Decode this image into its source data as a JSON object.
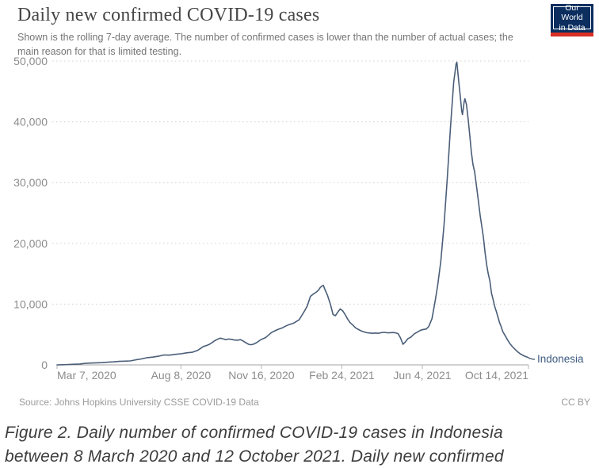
{
  "header": {
    "title": "Daily new confirmed COVID-19 cases",
    "subtitle": "Shown is the rolling 7-day average. The number of confirmed cases is lower than the number of actual cases; the main reason for that is limited testing.",
    "logo": {
      "line1": "Our World",
      "line2": "in Data",
      "bg_color": "#0b2e5f",
      "bar_color": "#d93025"
    }
  },
  "chart_data": {
    "type": "line",
    "title": "Daily new confirmed COVID-19 cases",
    "entity": "Indonesia",
    "xlabel": "",
    "ylabel": "",
    "ylim": [
      0,
      50000
    ],
    "x_domain": [
      0,
      586
    ],
    "x_unit": "days since 2020-03-07",
    "grid": "horizontal-dotted",
    "legend_position": "end-of-line-label",
    "line_color": "#4a5e78",
    "label_color": "#3d5a80",
    "axis_text_color": "#8c8c8c",
    "y_ticks": [
      {
        "value": 0,
        "label": "0"
      },
      {
        "value": 10000,
        "label": "10,000"
      },
      {
        "value": 20000,
        "label": "20,000"
      },
      {
        "value": 30000,
        "label": "30,000"
      },
      {
        "value": 40000,
        "label": "40,000"
      },
      {
        "value": 50000,
        "label": "50,000"
      }
    ],
    "x_ticks": [
      {
        "day": 0,
        "label": "Mar 7, 2020",
        "anchor": "start"
      },
      {
        "day": 154,
        "label": "Aug 8, 2020",
        "anchor": "middle"
      },
      {
        "day": 254,
        "label": "Nov 16, 2020",
        "anchor": "middle"
      },
      {
        "day": 354,
        "label": "Feb 24, 2021",
        "anchor": "middle"
      },
      {
        "day": 454,
        "label": "Jun 4, 2021",
        "anchor": "middle"
      },
      {
        "day": 586,
        "label": "Oct 14, 2021",
        "anchor": "end"
      }
    ],
    "points": [
      [
        0,
        5
      ],
      [
        7,
        20
      ],
      [
        14,
        60
      ],
      [
        21,
        100
      ],
      [
        28,
        140
      ],
      [
        35,
        250
      ],
      [
        42,
        300
      ],
      [
        49,
        340
      ],
      [
        56,
        370
      ],
      [
        63,
        440
      ],
      [
        70,
        500
      ],
      [
        77,
        580
      ],
      [
        84,
        620
      ],
      [
        91,
        650
      ],
      [
        98,
        830
      ],
      [
        105,
        980
      ],
      [
        112,
        1190
      ],
      [
        119,
        1280
      ],
      [
        126,
        1420
      ],
      [
        133,
        1630
      ],
      [
        140,
        1600
      ],
      [
        147,
        1740
      ],
      [
        154,
        1830
      ],
      [
        161,
        1990
      ],
      [
        168,
        2080
      ],
      [
        175,
        2400
      ],
      [
        182,
        3030
      ],
      [
        186,
        3200
      ],
      [
        189,
        3350
      ],
      [
        193,
        3700
      ],
      [
        196,
        3980
      ],
      [
        200,
        4250
      ],
      [
        203,
        4400
      ],
      [
        206,
        4300
      ],
      [
        210,
        4150
      ],
      [
        213,
        4250
      ],
      [
        217,
        4200
      ],
      [
        220,
        4100
      ],
      [
        224,
        4060
      ],
      [
        228,
        4150
      ],
      [
        231,
        3960
      ],
      [
        234,
        3700
      ],
      [
        238,
        3400
      ],
      [
        241,
        3320
      ],
      [
        244,
        3400
      ],
      [
        248,
        3650
      ],
      [
        252,
        4030
      ],
      [
        255,
        4250
      ],
      [
        259,
        4460
      ],
      [
        262,
        4800
      ],
      [
        266,
        5280
      ],
      [
        269,
        5500
      ],
      [
        273,
        5740
      ],
      [
        276,
        5900
      ],
      [
        280,
        6080
      ],
      [
        283,
        6300
      ],
      [
        287,
        6550
      ],
      [
        290,
        6700
      ],
      [
        294,
        6870
      ],
      [
        297,
        7100
      ],
      [
        301,
        7430
      ],
      [
        304,
        8100
      ],
      [
        308,
        8960
      ],
      [
        311,
        9700
      ],
      [
        315,
        11280
      ],
      [
        318,
        11600
      ],
      [
        322,
        11950
      ],
      [
        325,
        12300
      ],
      [
        327,
        12700
      ],
      [
        329,
        12950
      ],
      [
        331,
        13100
      ],
      [
        333,
        12400
      ],
      [
        336,
        11500
      ],
      [
        340,
        9900
      ],
      [
        343,
        8300
      ],
      [
        346,
        8100
      ],
      [
        349,
        8700
      ],
      [
        352,
        9200
      ],
      [
        355,
        8900
      ],
      [
        358,
        8300
      ],
      [
        361,
        7600
      ],
      [
        364,
        7000
      ],
      [
        368,
        6500
      ],
      [
        371,
        6100
      ],
      [
        375,
        5800
      ],
      [
        378,
        5600
      ],
      [
        382,
        5400
      ],
      [
        385,
        5300
      ],
      [
        389,
        5250
      ],
      [
        392,
        5200
      ],
      [
        396,
        5250
      ],
      [
        399,
        5200
      ],
      [
        403,
        5300
      ],
      [
        406,
        5350
      ],
      [
        410,
        5300
      ],
      [
        413,
        5280
      ],
      [
        417,
        5320
      ],
      [
        420,
        5300
      ],
      [
        424,
        5150
      ],
      [
        427,
        4400
      ],
      [
        430,
        3400
      ],
      [
        433,
        3800
      ],
      [
        436,
        4300
      ],
      [
        440,
        4600
      ],
      [
        444,
        5100
      ],
      [
        448,
        5400
      ],
      [
        452,
        5700
      ],
      [
        456,
        5850
      ],
      [
        459,
        5900
      ],
      [
        462,
        6300
      ],
      [
        466,
        7600
      ],
      [
        470,
        10500
      ],
      [
        473,
        13000
      ],
      [
        477,
        17000
      ],
      [
        481,
        23000
      ],
      [
        485,
        30500
      ],
      [
        489,
        39000
      ],
      [
        493,
        46500
      ],
      [
        496,
        49500
      ],
      [
        497,
        49800
      ],
      [
        499,
        47000
      ],
      [
        501,
        44500
      ],
      [
        503,
        41800
      ],
      [
        504,
        41200
      ],
      [
        506,
        43300
      ],
      [
        507,
        43800
      ],
      [
        509,
        42800
      ],
      [
        511,
        40500
      ],
      [
        513,
        37800
      ],
      [
        515,
        35000
      ],
      [
        517,
        33000
      ],
      [
        519,
        31800
      ],
      [
        521,
        29800
      ],
      [
        523,
        27800
      ],
      [
        526,
        24500
      ],
      [
        528,
        22800
      ],
      [
        530,
        21000
      ],
      [
        532,
        18500
      ],
      [
        534,
        16500
      ],
      [
        536,
        15000
      ],
      [
        538,
        13800
      ],
      [
        540,
        11800
      ],
      [
        542,
        10800
      ],
      [
        544,
        9600
      ],
      [
        546,
        8800
      ],
      [
        548,
        7900
      ],
      [
        550,
        7000
      ],
      [
        552,
        6300
      ],
      [
        554,
        5500
      ],
      [
        557,
        4800
      ],
      [
        560,
        4100
      ],
      [
        563,
        3500
      ],
      [
        566,
        3000
      ],
      [
        569,
        2600
      ],
      [
        572,
        2200
      ],
      [
        575,
        1900
      ],
      [
        578,
        1650
      ],
      [
        581,
        1450
      ],
      [
        584,
        1300
      ]
    ]
  },
  "footer": {
    "source": "Source: Johns Hopkins University CSSE COVID-19 Data",
    "license": "CC BY"
  },
  "caption": {
    "lines": [
      "Figure 2. Daily number of confirmed COVID-19 cases in Indonesia",
      "between 8 March 2020 and 12 October 2021. Daily new confirmed"
    ]
  }
}
